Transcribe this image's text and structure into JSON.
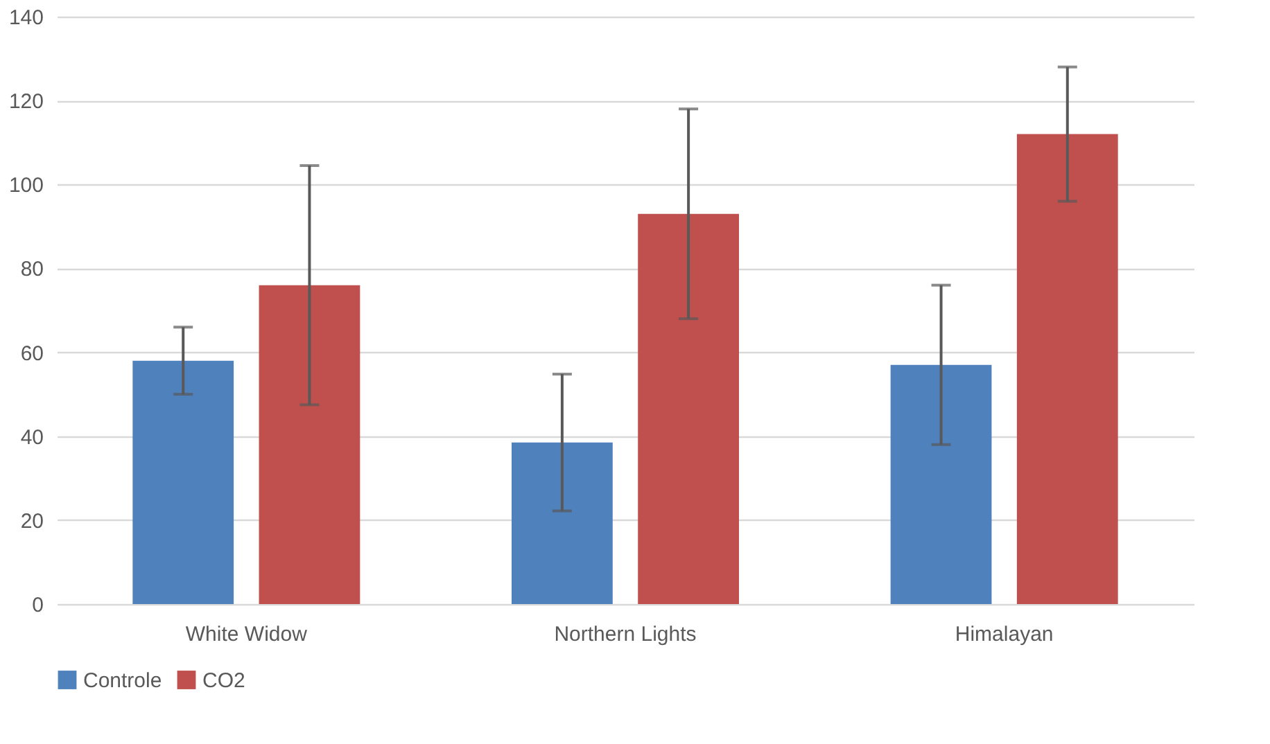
{
  "chart_data": {
    "type": "bar",
    "categories": [
      "White Widow",
      "Northern Lights",
      "Himalayan"
    ],
    "series": [
      {
        "name": "Controle",
        "color": "#4f81bd",
        "values": [
          58,
          38.5,
          57
        ],
        "errors": [
          8,
          16.3,
          19
        ]
      },
      {
        "name": "CO2",
        "color": "#c0504d",
        "values": [
          76,
          93,
          112
        ],
        "errors": [
          28.5,
          25,
          16
        ]
      }
    ],
    "ylim": [
      0,
      140
    ],
    "yticks": [
      0,
      20,
      40,
      60,
      80,
      100,
      120,
      140
    ],
    "grid": "y",
    "legend": "bottom"
  }
}
